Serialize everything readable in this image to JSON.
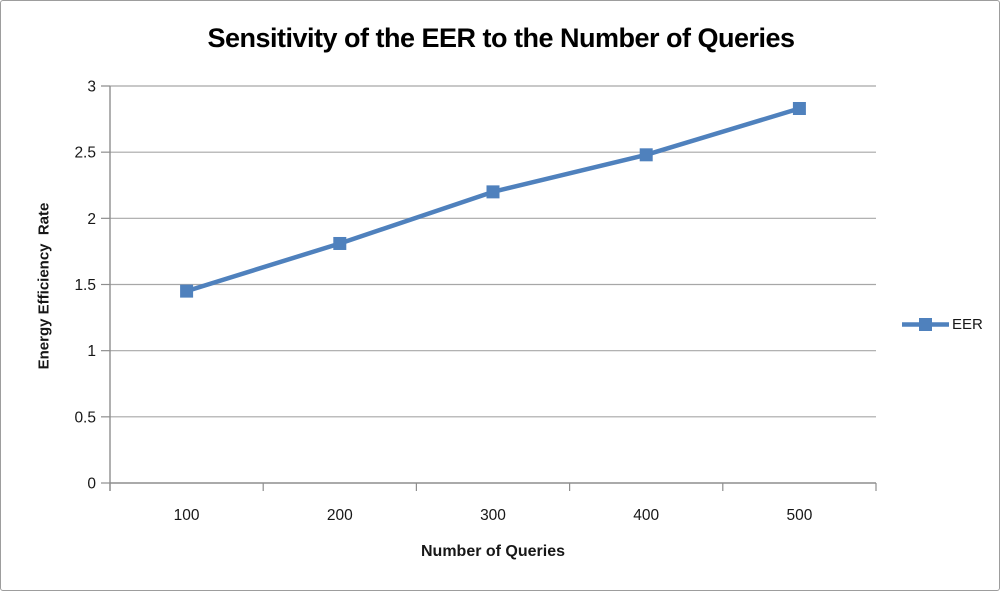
{
  "chart_data": {
    "type": "line",
    "title": "Sensitivity of the EER to the Number of Queries",
    "xlabel": "Number of Queries",
    "ylabel": "Energy Efficiency  Rate",
    "categories": [
      "100",
      "200",
      "300",
      "400",
      "500"
    ],
    "series": [
      {
        "name": "EER",
        "values": [
          1.45,
          1.81,
          2.2,
          2.48,
          2.83
        ],
        "color": "#4F81BD",
        "marker": "square"
      }
    ],
    "ylim": [
      0,
      3
    ],
    "y_ticks": [
      0,
      0.5,
      1,
      1.5,
      2,
      2.5,
      3
    ],
    "y_tick_labels": [
      "0",
      "0.5",
      "1",
      "1.5",
      "2",
      "2.5",
      "3"
    ],
    "grid": "horizontal",
    "legend_position": "right"
  },
  "legend": {
    "label": "EER"
  },
  "colors": {
    "series": "#4F81BD",
    "gridline": "#A7A7A7",
    "axis": "#8E8E8E",
    "tick_text": "#171717",
    "title_text": "#000000",
    "frame_border": "#9D9D9D",
    "background": "#FFFFFF"
  }
}
